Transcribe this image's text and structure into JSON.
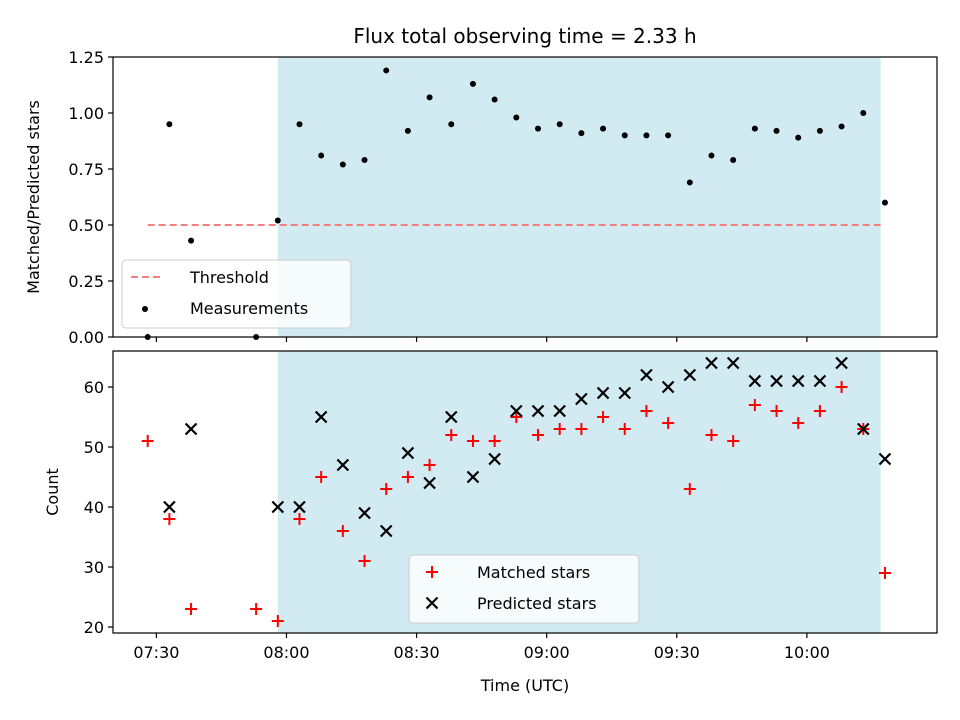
{
  "chart_data": [
    {
      "type": "scatter",
      "title": "Flux total observing time = 2.33 h",
      "xlabel": "",
      "ylabel": "Matched/Predicted stars",
      "ylim": [
        0,
        1.25
      ],
      "yticks": [
        0,
        0.25,
        0.5,
        0.75,
        1.0,
        1.25
      ],
      "yticklabels": [
        "0.00",
        "0.25",
        "0.50",
        "0.75",
        "1.00",
        "1.25"
      ],
      "xticks": [
        "07:30",
        "08:00",
        "08:30",
        "09:00",
        "09:30",
        "10:00"
      ],
      "xlim": [
        "07:20",
        "10:30"
      ],
      "shaded_region": {
        "start": "07:58",
        "end": "10:17",
        "color": "#add8e6"
      },
      "threshold": {
        "name": "Threshold",
        "value": 0.5,
        "x_start": "07:28",
        "x_end": "10:17",
        "color": "#f08080",
        "style": "dashed"
      },
      "legend": {
        "position": "lower-left",
        "entries": [
          "Threshold",
          "Measurements"
        ]
      },
      "series": [
        {
          "name": "Measurements",
          "color": "#000000",
          "marker": "dot",
          "x": [
            "07:28",
            "07:33",
            "07:38",
            "07:53",
            "07:58",
            "08:03",
            "08:08",
            "08:13",
            "08:18",
            "08:23",
            "08:28",
            "08:33",
            "08:38",
            "08:43",
            "08:48",
            "08:53",
            "08:58",
            "09:03",
            "09:08",
            "09:13",
            "09:18",
            "09:23",
            "09:28",
            "09:33",
            "09:38",
            "09:43",
            "09:48",
            "09:53",
            "09:58",
            "10:03",
            "10:08",
            "10:13",
            "10:18"
          ],
          "y": [
            0.0,
            0.95,
            0.43,
            0.0,
            0.52,
            0.95,
            0.81,
            0.77,
            0.79,
            1.19,
            0.92,
            1.07,
            0.95,
            1.13,
            1.06,
            0.98,
            0.93,
            0.95,
            0.91,
            0.93,
            0.9,
            0.9,
            0.9,
            0.69,
            0.81,
            0.79,
            0.93,
            0.92,
            0.89,
            0.92,
            0.94,
            1.0,
            0.6
          ]
        }
      ]
    },
    {
      "type": "scatter",
      "xlabel": "Time (UTC)",
      "ylabel": "Count",
      "ylim": [
        19,
        66
      ],
      "yticks": [
        20,
        30,
        40,
        50,
        60
      ],
      "yticklabels": [
        "20",
        "30",
        "40",
        "50",
        "60"
      ],
      "xticks": [
        "07:30",
        "08:00",
        "08:30",
        "09:00",
        "09:30",
        "10:00"
      ],
      "xticklabels": [
        "07:30",
        "08:00",
        "08:30",
        "09:00",
        "09:30",
        "10:00"
      ],
      "xlim": [
        "07:20",
        "10:30"
      ],
      "shaded_region": {
        "start": "07:58",
        "end": "10:17",
        "color": "#add8e6"
      },
      "legend": {
        "position": "lower-center",
        "entries": [
          "Matched stars",
          "Predicted stars"
        ]
      },
      "series": [
        {
          "name": "Matched stars",
          "color": "#ff0000",
          "marker": "plus",
          "x": [
            "07:28",
            "07:33",
            "07:38",
            "07:53",
            "07:58",
            "08:03",
            "08:08",
            "08:13",
            "08:18",
            "08:23",
            "08:28",
            "08:33",
            "08:38",
            "08:43",
            "08:48",
            "08:53",
            "08:58",
            "09:03",
            "09:08",
            "09:13",
            "09:18",
            "09:23",
            "09:28",
            "09:33",
            "09:38",
            "09:43",
            "09:48",
            "09:53",
            "09:58",
            "10:03",
            "10:08",
            "10:13",
            "10:18"
          ],
          "y": [
            51,
            38,
            23,
            23,
            21,
            38,
            45,
            36,
            31,
            43,
            45,
            47,
            52,
            51,
            51,
            55,
            52,
            53,
            53,
            55,
            53,
            56,
            54,
            43,
            52,
            51,
            57,
            56,
            54,
            56,
            60,
            53,
            29
          ]
        },
        {
          "name": "Predicted stars",
          "color": "#000000",
          "marker": "x",
          "x": [
            "07:33",
            "07:38",
            "07:58",
            "08:03",
            "08:08",
            "08:13",
            "08:18",
            "08:23",
            "08:28",
            "08:33",
            "08:38",
            "08:43",
            "08:48",
            "08:53",
            "08:58",
            "09:03",
            "09:08",
            "09:13",
            "09:18",
            "09:23",
            "09:28",
            "09:33",
            "09:38",
            "09:43",
            "09:48",
            "09:53",
            "09:58",
            "10:03",
            "10:08",
            "10:13",
            "10:18"
          ],
          "y": [
            40,
            53,
            40,
            40,
            55,
            47,
            39,
            36,
            49,
            44,
            55,
            45,
            48,
            56,
            56,
            56,
            58,
            59,
            59,
            62,
            60,
            62,
            64,
            64,
            61,
            61,
            61,
            61,
            64,
            53,
            48
          ]
        }
      ]
    }
  ]
}
